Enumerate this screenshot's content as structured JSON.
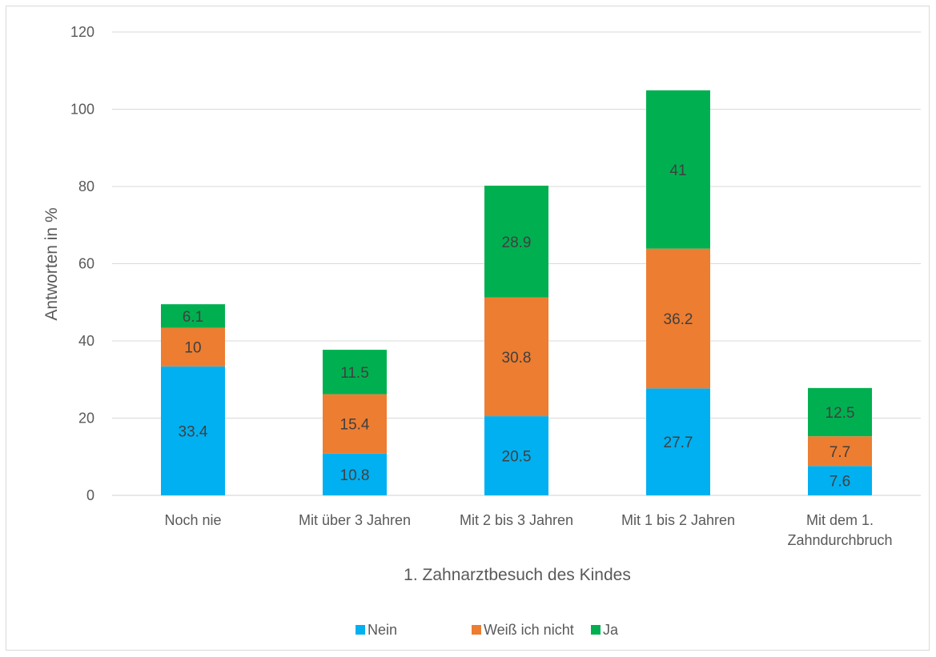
{
  "chart_data": {
    "type": "bar",
    "stacked": true,
    "title": "",
    "xlabel": "1. Zahnarztbesuch des Kindes",
    "ylabel": "Antworten in %",
    "ylim": [
      0,
      120
    ],
    "yticks": [
      0,
      20,
      40,
      60,
      80,
      100,
      120
    ],
    "grid": true,
    "legend_position": "bottom",
    "categories": [
      [
        "Noch nie"
      ],
      [
        "Mit über 3 Jahren"
      ],
      [
        "Mit 2 bis 3 Jahren"
      ],
      [
        "Mit 1 bis 2 Jahren"
      ],
      [
        "Mit dem 1.",
        "Zahndurchbruch"
      ]
    ],
    "series": [
      {
        "name": "Nein",
        "color": "#00b0f0",
        "values": [
          33.4,
          10.8,
          20.5,
          27.7,
          7.6
        ],
        "labels": [
          "33.4",
          "10.8",
          "20.5",
          "27.7",
          "7.6"
        ]
      },
      {
        "name": "Weiß ich nicht",
        "color": "#ed7d31",
        "values": [
          10,
          15.4,
          30.8,
          36.2,
          7.7
        ],
        "labels": [
          "10",
          "15.4",
          "30.8",
          "36.2",
          "7.7"
        ]
      },
      {
        "name": "Ja",
        "color": "#00b050",
        "values": [
          6.1,
          11.5,
          28.9,
          41,
          12.5
        ],
        "labels": [
          "6.1",
          "11.5",
          "28.9",
          "41",
          "12.5"
        ]
      }
    ]
  }
}
